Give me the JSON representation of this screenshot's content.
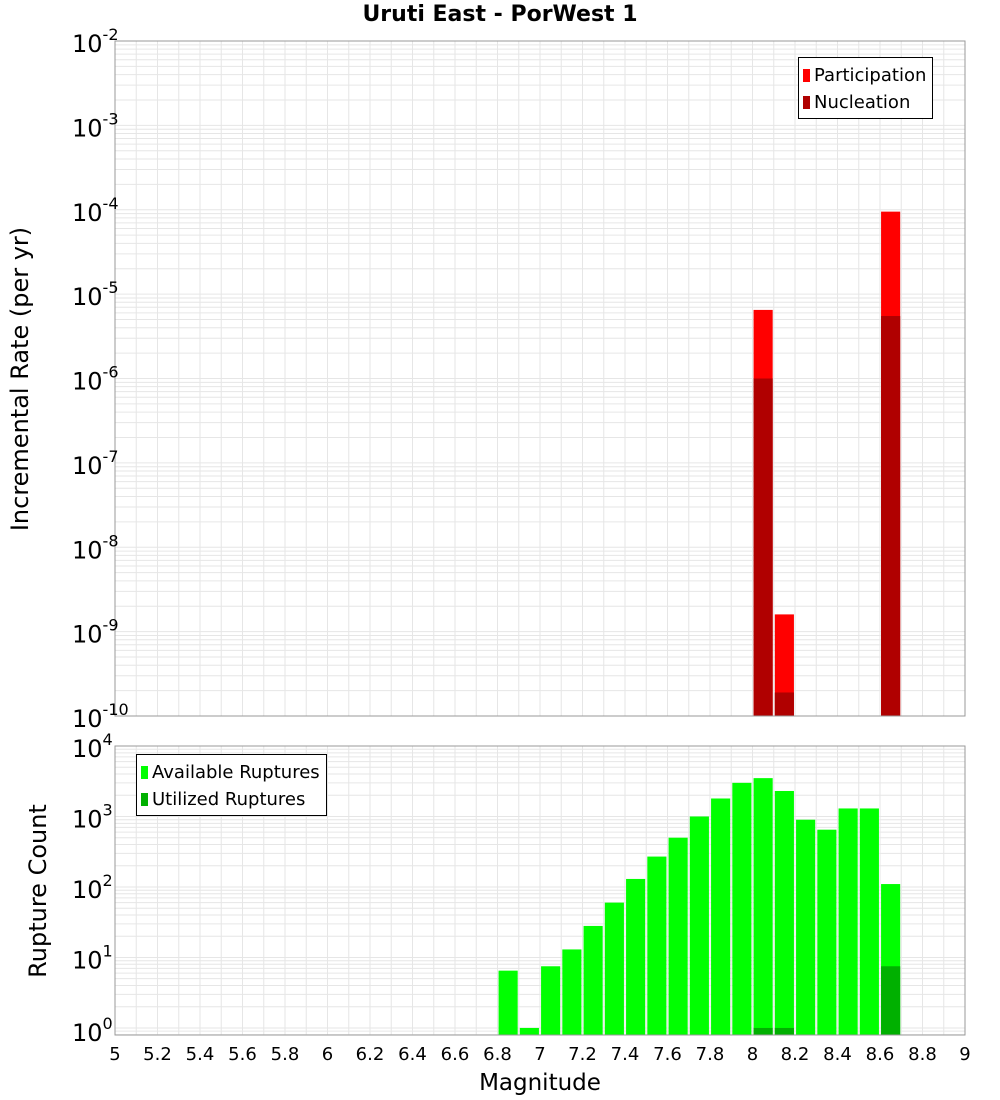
{
  "title": "Uruti East - PorWest 1",
  "colors": {
    "participation": "#ff0000",
    "nucleation": "#b00000",
    "available": "#00ff00",
    "utilized": "#00b000",
    "grid": "#e6e6e6",
    "axis": "#999999"
  },
  "chart_data": [
    {
      "type": "bar",
      "scale": "log",
      "title": "Uruti East - PorWest 1",
      "xlabel": "",
      "ylabel": "Incremental Rate (per yr)",
      "xlim": [
        5,
        9
      ],
      "ylim_exp": [
        -10,
        -2
      ],
      "y_tick_exponents": [
        "-2",
        "-3",
        "-4",
        "-5",
        "-6",
        "-7",
        "-8",
        "-9",
        "-10"
      ],
      "legend": [
        "Participation",
        "Nucleation"
      ],
      "legend_position": "top-right",
      "series": [
        {
          "name": "Participation",
          "color": "#ff0000",
          "points": [
            {
              "x": 8.05,
              "y": 6.5e-06
            },
            {
              "x": 8.15,
              "y": 1.6e-09
            },
            {
              "x": 8.65,
              "y": 9.5e-05
            }
          ]
        },
        {
          "name": "Nucleation",
          "color": "#b00000",
          "points": [
            {
              "x": 8.05,
              "y": 1e-06
            },
            {
              "x": 8.15,
              "y": 1.9e-10
            },
            {
              "x": 8.65,
              "y": 5.5e-06
            }
          ]
        }
      ]
    },
    {
      "type": "bar",
      "scale": "log",
      "xlabel": "Magnitude",
      "ylabel": "Rupture Count",
      "xlim": [
        5,
        9
      ],
      "ylim_exp": [
        -0.1,
        4
      ],
      "y_tick_exponents": [
        "0",
        "1",
        "2",
        "3",
        "4"
      ],
      "x_ticks": [
        "5",
        "5.2",
        "5.4",
        "5.6",
        "5.8",
        "6",
        "6.2",
        "6.4",
        "6.6",
        "6.8",
        "7",
        "7.2",
        "7.4",
        "7.6",
        "7.8",
        "8",
        "8.2",
        "8.4",
        "8.6",
        "8.8",
        "9"
      ],
      "legend": [
        "Available Ruptures",
        "Utilized Ruptures"
      ],
      "legend_position": "top-left",
      "series": [
        {
          "name": "Available Ruptures",
          "color": "#00ff00",
          "points": [
            {
              "x": 6.85,
              "y": 6.5
            },
            {
              "x": 6.95,
              "y": 1
            },
            {
              "x": 7.05,
              "y": 7.5
            },
            {
              "x": 7.15,
              "y": 13
            },
            {
              "x": 7.25,
              "y": 28
            },
            {
              "x": 7.35,
              "y": 60
            },
            {
              "x": 7.45,
              "y": 130
            },
            {
              "x": 7.55,
              "y": 270
            },
            {
              "x": 7.65,
              "y": 500
            },
            {
              "x": 7.75,
              "y": 1000
            },
            {
              "x": 7.85,
              "y": 1800
            },
            {
              "x": 7.95,
              "y": 3000
            },
            {
              "x": 8.05,
              "y": 3500
            },
            {
              "x": 8.15,
              "y": 2300
            },
            {
              "x": 8.25,
              "y": 900
            },
            {
              "x": 8.35,
              "y": 650
            },
            {
              "x": 8.45,
              "y": 1300
            },
            {
              "x": 8.55,
              "y": 1300
            },
            {
              "x": 8.65,
              "y": 110
            }
          ]
        },
        {
          "name": "Utilized Ruptures",
          "color": "#00b000",
          "points": [
            {
              "x": 8.05,
              "y": 1
            },
            {
              "x": 8.15,
              "y": 1
            },
            {
              "x": 8.65,
              "y": 7.5
            }
          ]
        }
      ]
    }
  ]
}
